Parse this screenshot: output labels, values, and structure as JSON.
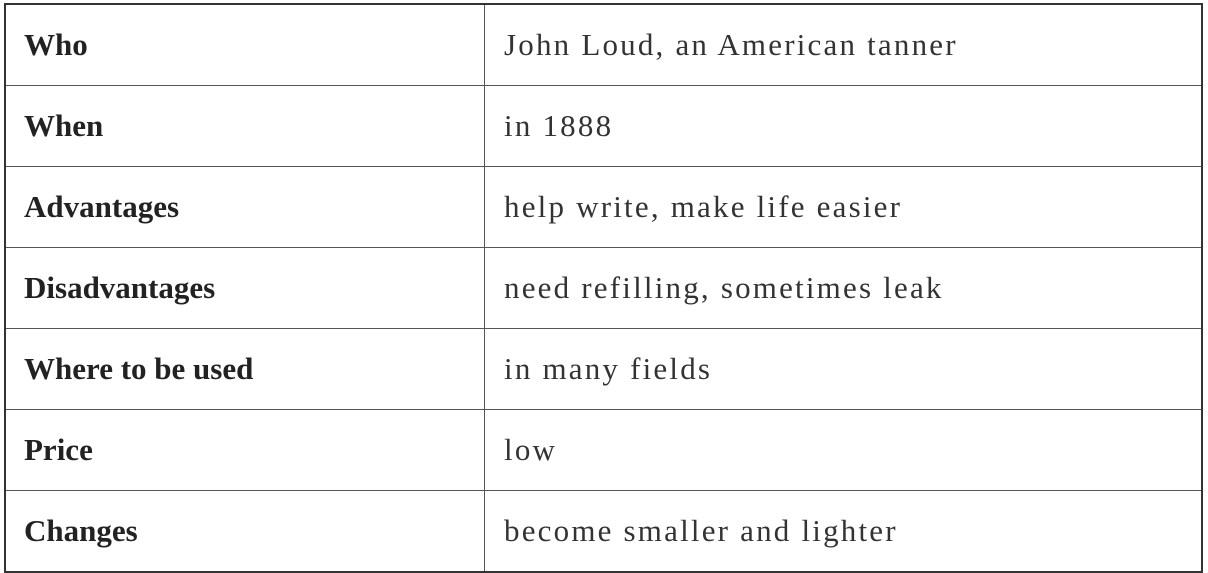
{
  "rows": [
    {
      "label": "Who",
      "value": "John Loud, an American tanner"
    },
    {
      "label": "When",
      "value": "in 1888"
    },
    {
      "label": "Advantages",
      "value": "help write, make life easier"
    },
    {
      "label": "Disadvantages",
      "value": "need refilling, sometimes leak"
    },
    {
      "label": "Where to be used",
      "value": "in many fields"
    },
    {
      "label": "Price",
      "value": "low"
    },
    {
      "label": "Changes",
      "value": "become smaller and lighter"
    }
  ]
}
